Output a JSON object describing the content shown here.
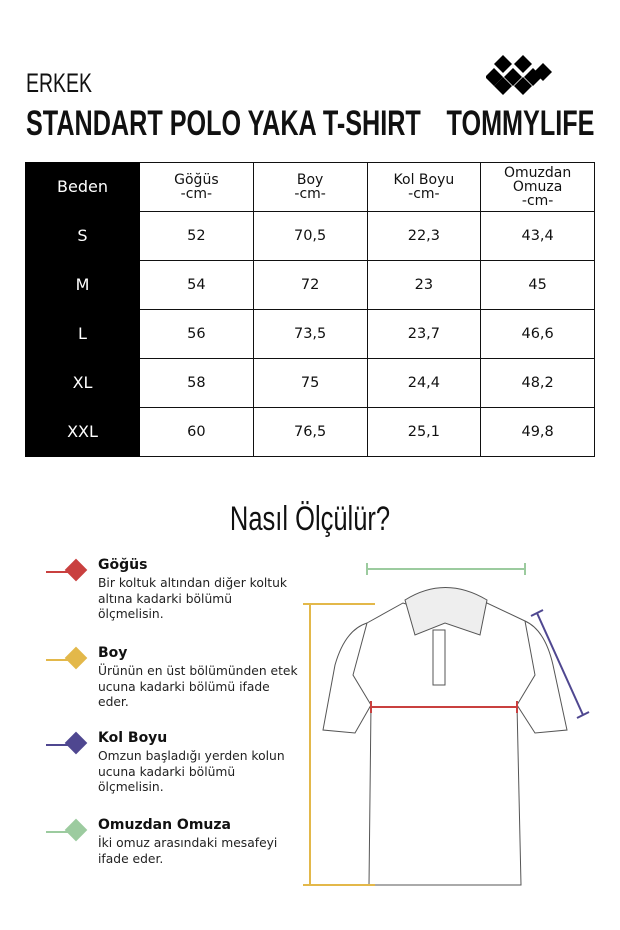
{
  "header": {
    "subtitle": "ERKEK",
    "title": "STANDART POLO YAKA T-SHIRT",
    "brand": "TOMMYLIFE"
  },
  "table": {
    "headers": [
      {
        "l1": "Beden"
      },
      {
        "l1": "Göğüs",
        "l2": "-cm-"
      },
      {
        "l1": "Boy",
        "l2": "-cm-"
      },
      {
        "l1": "Kol Boyu",
        "l2": "-cm-"
      },
      {
        "l1": "Omuzdan",
        "l2": "Omuza",
        "l3": "-cm-"
      }
    ],
    "rows": [
      [
        "S",
        "52",
        "70,5",
        "22,3",
        "43,4"
      ],
      [
        "M",
        "54",
        "72",
        "23",
        "45"
      ],
      [
        "L",
        "56",
        "73,5",
        "23,7",
        "46,6"
      ],
      [
        "XL",
        "58",
        "75",
        "24,4",
        "48,2"
      ],
      [
        "XXL",
        "60",
        "76,5",
        "25,1",
        "49,8"
      ]
    ]
  },
  "howto": {
    "title": "Nasıl Ölçülür?",
    "items": [
      {
        "title": "Göğüs",
        "text": "Bir koltuk altından diğer koltuk altına kadarki bölümü ölçmelisin.",
        "color": "#c9403f"
      },
      {
        "title": "Boy",
        "text": "Ürünün en üst bölümünden etek ucuna kadarki bölümü ifade eder.",
        "color": "#e3b84a"
      },
      {
        "title": "Kol Boyu",
        "text": "Omzun başladığı yerden kolun ucuna kadarki bölümü ölçmelisin.",
        "color": "#4f4790"
      },
      {
        "title": "Omuzdan Omuza",
        "text": "İki omuz arasındaki mesafeyi ifade eder.",
        "color": "#9ccb9f"
      }
    ]
  }
}
